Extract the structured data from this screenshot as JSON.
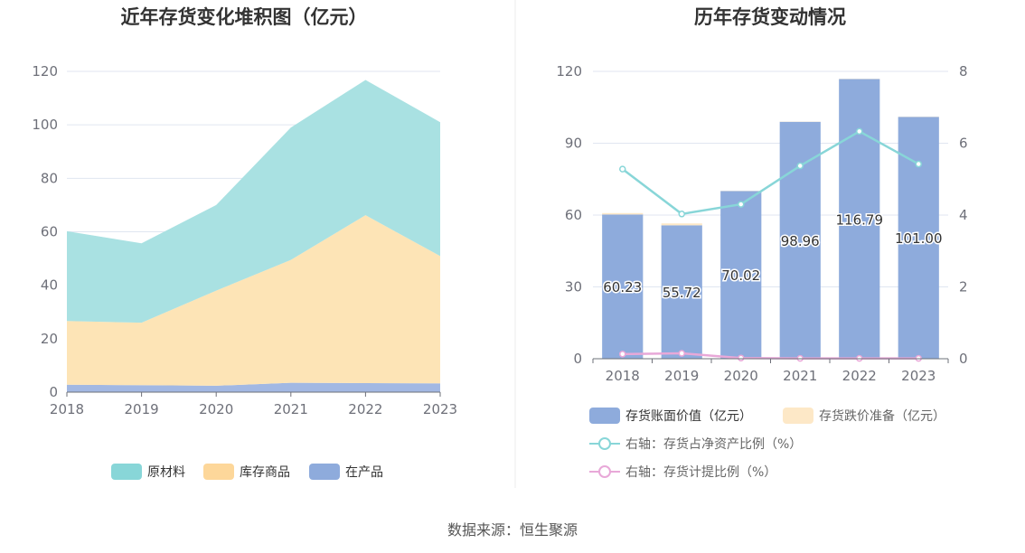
{
  "source": "数据来源：恒生聚源",
  "colors": {
    "raw": "#a9e1e2",
    "raw_legend": "#88d6d8",
    "finished": "#fde4b6",
    "finished_legend": "#fdd79a",
    "wip": "#a2b8e3",
    "wip_legend": "#8eabdc",
    "bar": "#8eabdc",
    "impair_legend": "#fde8c7",
    "line_ratio": "#88d6d8",
    "line_provision": "#e8a8d8",
    "grid": "#e0e6f1",
    "axis": "#6e7079"
  },
  "chart_data": [
    {
      "type": "area",
      "stacked": true,
      "title": "近年存货变化堆积图（亿元）",
      "x": [
        "2018",
        "2019",
        "2020",
        "2021",
        "2022",
        "2023"
      ],
      "ylim": [
        0,
        120
      ],
      "yticks": [
        0,
        20,
        40,
        60,
        80,
        100,
        120
      ],
      "grid": true,
      "legend_position": "bottom",
      "series": [
        {
          "name": "在产品",
          "values": [
            2.8,
            2.6,
            2.4,
            3.5,
            3.4,
            3.3
          ]
        },
        {
          "name": "库存商品",
          "values": [
            23.8,
            23.4,
            35.6,
            46.0,
            62.8,
            47.6
          ]
        },
        {
          "name": "原材料",
          "values": [
            33.6,
            29.7,
            32.0,
            49.5,
            50.6,
            50.1
          ]
        }
      ],
      "legend": [
        "原材料",
        "库存商品",
        "在产品"
      ]
    },
    {
      "type": "bar",
      "title": "历年存货变动情况",
      "categories": [
        "2018",
        "2019",
        "2020",
        "2021",
        "2022",
        "2023"
      ],
      "ylim": [
        0,
        120
      ],
      "yticks": [
        0,
        30,
        60,
        90,
        120
      ],
      "y2lim": [
        0,
        8
      ],
      "y2ticks": [
        0,
        2,
        4,
        6,
        8
      ],
      "grid": true,
      "legend_position": "bottom",
      "series": [
        {
          "name": "存货账面价值（亿元）",
          "axis": "left",
          "values": [
            60.23,
            55.72,
            70.02,
            98.96,
            116.79,
            101.0
          ],
          "labels": [
            "60.23",
            "55.72",
            "70.02",
            "98.96",
            "116.79",
            "101.00"
          ]
        },
        {
          "name": "存货跌价准备（亿元）",
          "axis": "left",
          "values": [
            0.6,
            0.8,
            0.1,
            0.1,
            0.1,
            0.1
          ]
        },
        {
          "name": "右轴：存货占净资产比例（%）",
          "axis": "right",
          "type": "line",
          "values": [
            5.28,
            4.03,
            4.3,
            5.37,
            6.33,
            5.42
          ]
        },
        {
          "name": "右轴：存货计提比例（%）",
          "axis": "right",
          "type": "line",
          "values": [
            0.13,
            0.15,
            0.02,
            0.01,
            0.01,
            0.01
          ]
        }
      ]
    }
  ]
}
